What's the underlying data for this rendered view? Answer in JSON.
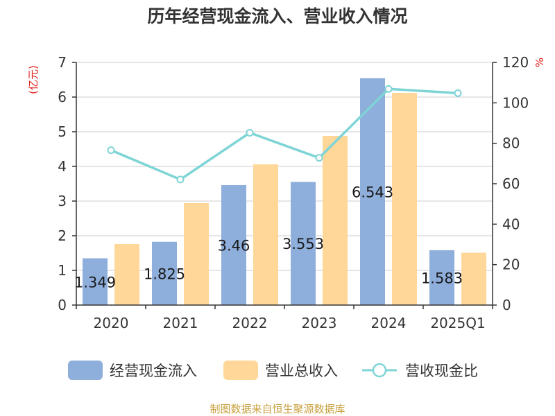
{
  "chart_data": {
    "type": "bar",
    "title": "历年经营现金流入、营业收入情况",
    "categories": [
      "2020",
      "2021",
      "2022",
      "2023",
      "2024",
      "2025Q1"
    ],
    "y_left": {
      "unit": "(亿元)",
      "min": 0,
      "max": 7,
      "ticks": [
        "0",
        "1",
        "2",
        "3",
        "4",
        "5",
        "6",
        "7"
      ]
    },
    "y_right": {
      "unit": "%",
      "min": 0,
      "max": 120,
      "ticks": [
        "0",
        "20",
        "40",
        "60",
        "80",
        "100",
        "120"
      ]
    },
    "grid": true,
    "series": [
      {
        "name": "经营现金流入",
        "type": "bar",
        "axis": "left",
        "color": "#8eaedb",
        "values": [
          1.349,
          1.825,
          3.46,
          3.553,
          6.543,
          1.583
        ],
        "labels": [
          "1.349",
          "1.825",
          "3.46",
          "3.553",
          "6.543",
          "1.583"
        ]
      },
      {
        "name": "营业总收入",
        "type": "bar",
        "axis": "left",
        "color": "#ffd799",
        "values": [
          1.76,
          2.94,
          4.06,
          4.88,
          6.12,
          1.51
        ]
      },
      {
        "name": "营收现金比",
        "type": "line",
        "axis": "right",
        "color": "#7fd4d6",
        "values": [
          76.6,
          62.1,
          85.2,
          72.8,
          106.9,
          104.8
        ]
      }
    ],
    "legend_position": "bottom",
    "source_note": "制图数据来自恒生聚源数据库"
  }
}
